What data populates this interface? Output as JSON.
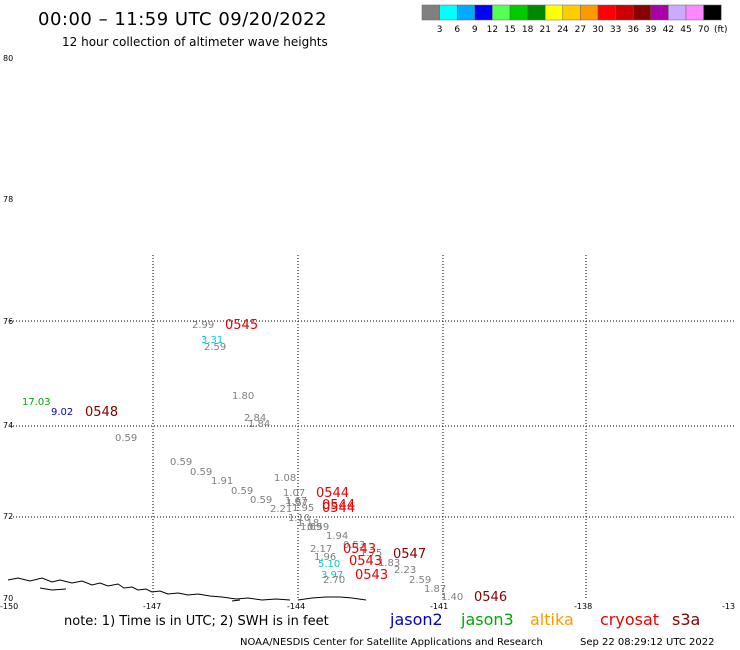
{
  "header": {
    "title": "00:00 – 11:59 UTC 09/20/2022",
    "subtitle": "12 hour collection of altimeter wave heights"
  },
  "colorbar": {
    "unit": "(ft)",
    "ticks": [
      "3",
      "6",
      "9",
      "12",
      "15",
      "18",
      "21",
      "24",
      "27",
      "30",
      "33",
      "36",
      "39",
      "42",
      "45",
      "70"
    ],
    "colors": [
      "#808080",
      "#00ffff",
      "#00aaff",
      "#0000ff",
      "#55ff55",
      "#00cc00",
      "#008800",
      "#ffff00",
      "#ffcc00",
      "#ff9900",
      "#ff0000",
      "#cc0000",
      "#880000",
      "#aa00aa",
      "#ccaaff",
      "#ff88ff",
      "#000000"
    ]
  },
  "map": {
    "lat_labels": [
      "80",
      "78",
      "76",
      "74",
      "72",
      "70"
    ],
    "lon_labels": [
      "-150",
      "-147",
      "-144",
      "-141",
      "-138",
      "-13"
    ],
    "grid_lats": [
      76,
      74,
      72
    ],
    "grid_lons": [
      -147,
      -144,
      -141,
      -138
    ],
    "extent": {
      "lon_min": -150,
      "lon_max": -135,
      "lat_min": 70,
      "lat_max": 80
    },
    "grid": "dotted"
  },
  "observations": [
    {
      "text": "2.99",
      "color": "#808080"
    },
    {
      "text": "3.31",
      "color": "#00cccc"
    },
    {
      "text": "2.59",
      "color": "#808080"
    },
    {
      "text": "1.80",
      "color": "#808080"
    },
    {
      "text": "2.84",
      "color": "#808080"
    },
    {
      "text": "1.84",
      "color": "#808080"
    },
    {
      "text": "17.03",
      "color": "#00aa00"
    },
    {
      "text": "9.02",
      "color": "#0000cc"
    },
    {
      "text": "0.59",
      "color": "#808080"
    },
    {
      "text": "0.59",
      "color": "#808080"
    },
    {
      "text": "0.59",
      "color": "#808080"
    },
    {
      "text": "1.91",
      "color": "#808080"
    },
    {
      "text": "0.59",
      "color": "#808080"
    },
    {
      "text": "0.59",
      "color": "#808080"
    },
    {
      "text": "1.08",
      "color": "#808080"
    },
    {
      "text": "1.07",
      "color": "#808080"
    },
    {
      "text": "1.67",
      "color": "#808080"
    },
    {
      "text": "1.57",
      "color": "#808080"
    },
    {
      "text": "2.21",
      "color": "#808080"
    },
    {
      "text": "1.95",
      "color": "#808080"
    },
    {
      "text": "1.10",
      "color": "#808080"
    },
    {
      "text": "1.18",
      "color": "#808080"
    },
    {
      "text": "1.69",
      "color": "#808080"
    },
    {
      "text": "0.59",
      "color": "#808080"
    },
    {
      "text": "1.94",
      "color": "#808080"
    },
    {
      "text": "2.17",
      "color": "#808080"
    },
    {
      "text": "0.53",
      "color": "#808080"
    },
    {
      "text": "1.75",
      "color": "#808080"
    },
    {
      "text": "1.96",
      "color": "#808080"
    },
    {
      "text": "5.10",
      "color": "#00cccc"
    },
    {
      "text": "1.83",
      "color": "#808080"
    },
    {
      "text": "2.23",
      "color": "#808080"
    },
    {
      "text": "3.97",
      "color": "#00cccc"
    },
    {
      "text": "2.70",
      "color": "#808080"
    },
    {
      "text": "2.59",
      "color": "#808080"
    },
    {
      "text": "1.87",
      "color": "#808080"
    },
    {
      "text": "1.40",
      "color": "#808080"
    }
  ],
  "pass_labels": [
    {
      "text": "0545",
      "color": "#ee0000"
    },
    {
      "text": "0548",
      "color": "#880000"
    },
    {
      "text": "0544",
      "color": "#ee0000"
    },
    {
      "text": "0544",
      "color": "#ee0000"
    },
    {
      "text": "0544",
      "color": "#ee0000"
    },
    {
      "text": "0543",
      "color": "#ee0000"
    },
    {
      "text": "0543",
      "color": "#ee0000"
    },
    {
      "text": "0543",
      "color": "#ee0000"
    },
    {
      "text": "0547",
      "color": "#880000"
    },
    {
      "text": "0546",
      "color": "#880000"
    }
  ],
  "footer": {
    "note": "note: 1) Time is in UTC; 2) SWH is in feet",
    "satellites": [
      {
        "name": "jason2",
        "color": "#0000cc"
      },
      {
        "name": "jason3",
        "color": "#00aa00"
      },
      {
        "name": "altika",
        "color": "#ff9900"
      },
      {
        "name": "cryosat",
        "color": "#ee0000"
      },
      {
        "name": "s3a",
        "color": "#880000"
      }
    ],
    "credit": "NOAA/NESDIS Center for Satellite Applications and Research",
    "timestamp": "Sep 22 08:29:12 UTC 2022"
  }
}
